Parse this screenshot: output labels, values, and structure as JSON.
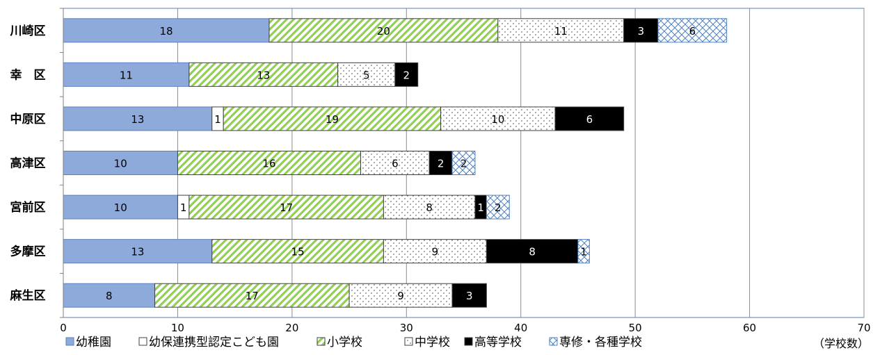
{
  "chart_data": {
    "type": "bar",
    "orientation": "horizontal",
    "stacked": true,
    "categories": [
      "川崎区",
      "幸　区",
      "中原区",
      "高津区",
      "宮前区",
      "多摩区",
      "麻生区"
    ],
    "series": [
      {
        "name": "幼稚園",
        "values": [
          18,
          11,
          13,
          10,
          10,
          13,
          8
        ],
        "color": "#8EAADB",
        "pattern": "solid"
      },
      {
        "name": "幼保連携型認定こども園",
        "values": [
          0,
          0,
          1,
          0,
          1,
          0,
          0
        ],
        "color": "#FFFFFF",
        "pattern": "solid"
      },
      {
        "name": "小学校",
        "values": [
          20,
          13,
          19,
          16,
          17,
          15,
          17
        ],
        "color": "#92D050",
        "pattern": "diagonal-stripe"
      },
      {
        "name": "中学校",
        "values": [
          11,
          5,
          10,
          6,
          8,
          9,
          9
        ],
        "color": "#FFFFFF",
        "pattern": "dots"
      },
      {
        "name": "高等学校",
        "values": [
          3,
          2,
          6,
          2,
          1,
          8,
          3
        ],
        "color": "#000000",
        "pattern": "solid"
      },
      {
        "name": "専修・各種学校",
        "values": [
          6,
          0,
          0,
          2,
          2,
          1,
          0
        ],
        "color": "#4F81BD",
        "pattern": "crosshatch"
      }
    ],
    "x_axis": {
      "ticks": [
        0,
        10,
        20,
        30,
        40,
        50,
        60,
        70
      ],
      "range": [
        0,
        70
      ],
      "unit_label": "（学校数）"
    },
    "grid": true,
    "legend_position": "bottom"
  }
}
